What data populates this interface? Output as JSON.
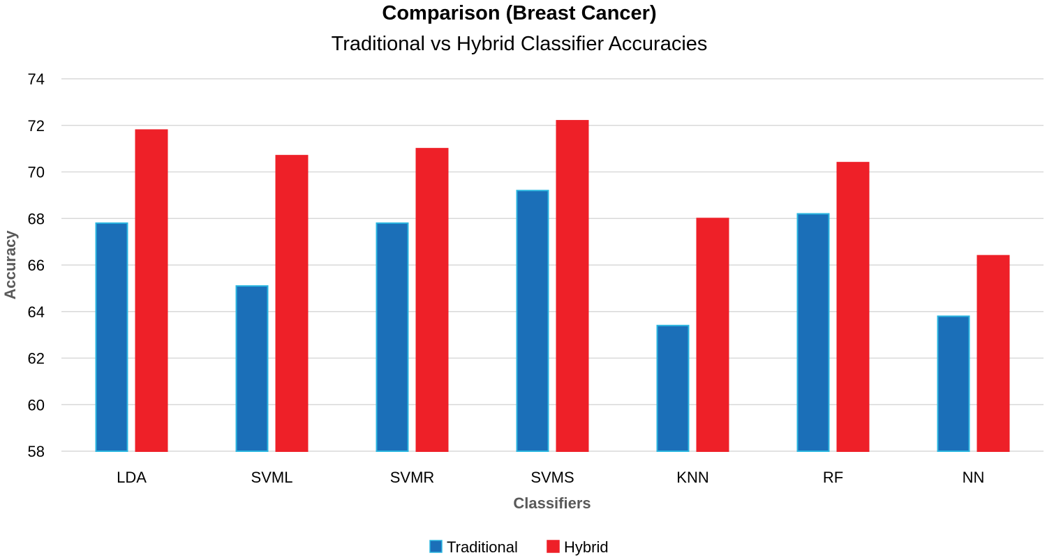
{
  "chart_data": {
    "type": "bar",
    "title": "Comparison (Breast Cancer)",
    "subtitle": "Traditional vs Hybrid Classifier Accuracies",
    "xlabel": "Classifiers",
    "ylabel": "Accuracy",
    "categories": [
      "LDA",
      "SVML",
      "SVMR",
      "SVMS",
      "KNN",
      "RF",
      "NN"
    ],
    "series": [
      {
        "name": "Traditional",
        "color": "#1b6fb8",
        "edge_color": "#2bb6e0",
        "values": [
          67.8,
          65.1,
          67.8,
          69.2,
          63.4,
          68.2,
          63.8
        ]
      },
      {
        "name": "Hybrid",
        "color": "#ee2028",
        "edge_color": "#ee2028",
        "values": [
          71.8,
          70.7,
          71.0,
          72.2,
          68.0,
          70.4,
          66.4
        ]
      }
    ],
    "ylim": [
      58,
      74
    ],
    "yticks": [
      58,
      60,
      62,
      64,
      66,
      68,
      70,
      72,
      74
    ],
    "grid": true,
    "legend": "bottom",
    "axis_title_color": "#595959",
    "grid_color": "#d9d9d9"
  }
}
